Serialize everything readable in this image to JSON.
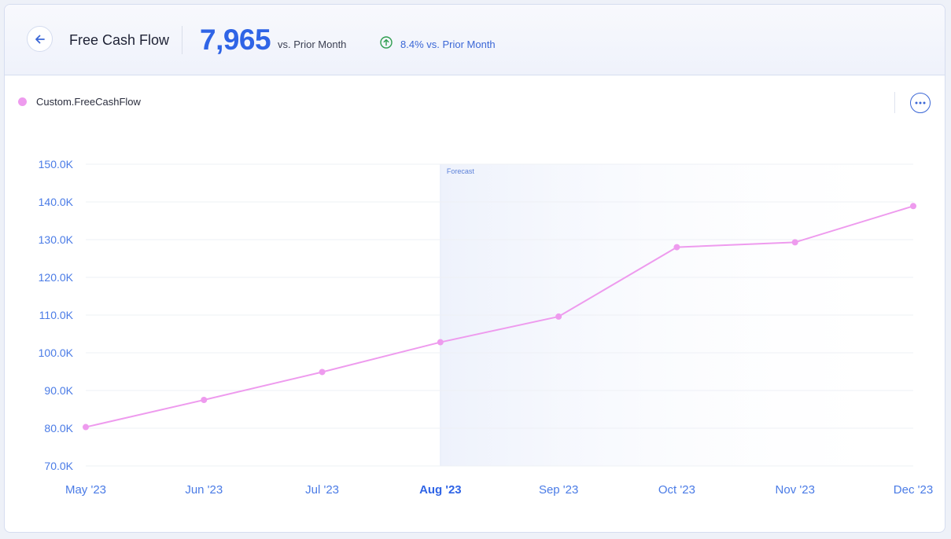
{
  "header": {
    "title": "Free Cash Flow",
    "value": "7,965",
    "value_caption": "vs. Prior Month",
    "change_text": "8.4% vs. Prior Month",
    "change_direction": "up"
  },
  "legend": {
    "label": "Custom.FreeCashFlow",
    "color": "#ee9bee"
  },
  "icons": {
    "back": "arrow-left-icon",
    "change": "arrow-up-circle-icon",
    "more": "more-horizontal-icon"
  },
  "colors": {
    "accent": "#2f64e6",
    "series": "#ee9bee",
    "positive": "#2e9d4e",
    "forecast_band": "#f3f6fd"
  },
  "chart_data": {
    "type": "line",
    "categories": [
      "May '23",
      "Jun '23",
      "Jul '23",
      "Aug '23",
      "Sep '23",
      "Oct '23",
      "Nov '23",
      "Dec '23"
    ],
    "active_category": "Aug '23",
    "series": [
      {
        "name": "Custom.FreeCashFlow",
        "values": [
          80300,
          87500,
          94900,
          102800,
          109600,
          128000,
          129300,
          138900
        ]
      }
    ],
    "y_ticks": [
      "70.0K",
      "80.0K",
      "90.0K",
      "100.0K",
      "110.0K",
      "120.0K",
      "130.0K",
      "140.0K",
      "150.0K"
    ],
    "ylim": [
      70000,
      150000
    ],
    "forecast_start": "Aug '23",
    "forecast_label": "Forecast",
    "grid": true,
    "legend_position": "top-left"
  }
}
